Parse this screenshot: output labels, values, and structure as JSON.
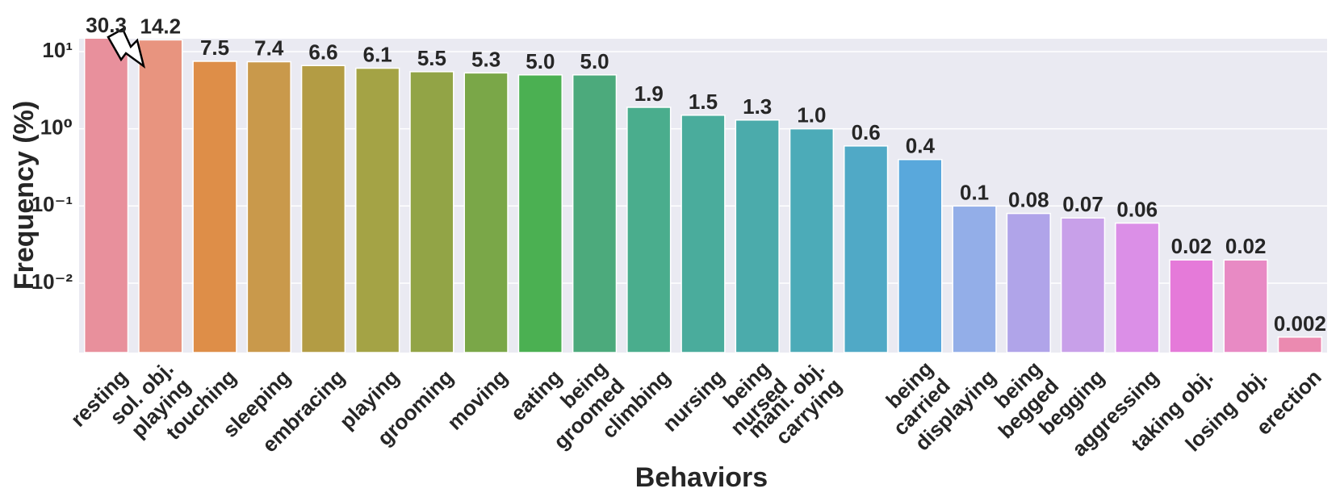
{
  "chart_data": {
    "type": "bar",
    "x_label": "Behaviors",
    "y_label": "Frequency (%)",
    "categories": [
      "resting",
      "sol. obj.\nplaying",
      "touching",
      "sleeping",
      "embracing",
      "playing",
      "grooming",
      "moving",
      "eating",
      "being\ngroomed",
      "climbing",
      "nursing",
      "being\nnursed",
      "mani. obj.\ncarrying",
      null,
      "being\ncarried",
      "displaying",
      "being\nbegged",
      "begging",
      "aggressing",
      "taking obj.",
      "losing obj.",
      "erection"
    ],
    "values": [
      30.3,
      14.2,
      7.5,
      7.4,
      6.6,
      6.1,
      5.5,
      5.3,
      5.0,
      5.0,
      1.9,
      1.5,
      1.3,
      1.0,
      0.6,
      0.4,
      0.1,
      0.08,
      0.07,
      0.06,
      0.02,
      0.02,
      0.002
    ],
    "value_labels": [
      "30.3",
      "14.2",
      "7.5",
      "7.4",
      "6.6",
      "6.1",
      "5.5",
      "5.3",
      "5.0",
      "5.0",
      "1.9",
      "1.5",
      "1.3",
      "1.0",
      "0.6",
      "0.4",
      "0.1",
      "0.08",
      "0.07",
      "0.06",
      "0.02",
      "0.02",
      "0.002"
    ],
    "colors": [
      "#e8909c",
      "#e8947f",
      "#de8e48",
      "#c9994b",
      "#b39c44",
      "#a4a345",
      "#92a446",
      "#7aa748",
      "#4bb052",
      "#4caa7c",
      "#4aad8d",
      "#4aac9c",
      "#4babab",
      "#4cabb8",
      "#50a9c6",
      "#59a8dc",
      "#93aee8",
      "#b0a4e9",
      "#c8a0e9",
      "#db8fe7",
      "#e57ad9",
      "#e88ac4",
      "#eb8ab0"
    ],
    "log_scale": true,
    "grid": true,
    "ylim": [
      0.00126,
      14.7
    ],
    "yticks": [
      {
        "value": 0.01,
        "label": "10⁻²"
      },
      {
        "value": 0.1,
        "label": "10⁻¹"
      },
      {
        "value": 1,
        "label": "10⁰"
      },
      {
        "value": 10,
        "label": "10¹"
      }
    ]
  }
}
